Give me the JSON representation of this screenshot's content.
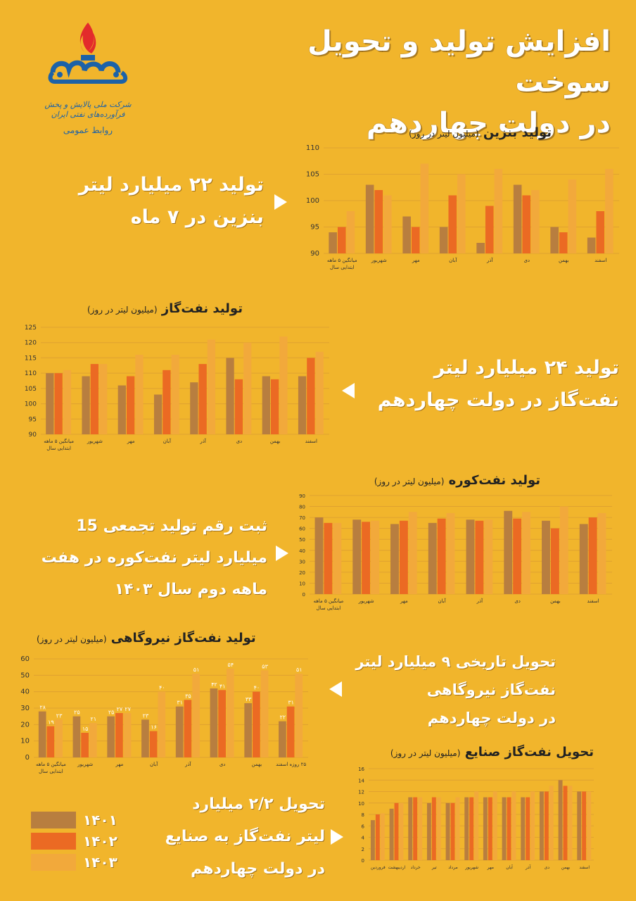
{
  "title": {
    "line1": "افزایش تولید و تحویل سوخت",
    "line2": "در دولت چهاردهم"
  },
  "logo": {
    "org_name": "شرکت ملی پالایش و پخش فرآورده‌های نفتی ایران",
    "dept": "روابط عمومی"
  },
  "colors": {
    "y1401": "#B87E3F",
    "y1402": "#EB6A23",
    "y1403": "#F2A93B",
    "background": "#F1B52C"
  },
  "legend": [
    {
      "label": "۱۴۰۱",
      "color": "#B87E3F"
    },
    {
      "label": "۱۴۰۲",
      "color": "#EB6A23"
    },
    {
      "label": "۱۴۰۳",
      "color": "#F2A93B"
    }
  ],
  "callouts": {
    "gasoline": [
      "تولید ۲۲ میلیارد لیتر",
      "بنزین در ۷ ماه"
    ],
    "diesel": [
      "تولید ۲۴ میلیارد لیتر",
      "نفت‌گاز در دولت چهاردهم"
    ],
    "kerosene": [
      "ثبت رقم تولید تجمعی 15",
      "میلیارد لیتر نفت‌کوره در هفت",
      "ماهه دوم سال ۱۴۰۳"
    ],
    "power": [
      "تحویل تاریخی ۹ میلیارد لیتر",
      "نفت‌گاز نیروگاهی",
      "در دولت چهاردهم"
    ],
    "industry": [
      "تحویل ۲/۲ میلیارد",
      "لیتر نفت‌گاز به صنایع",
      "در دولت چهاردهم"
    ]
  },
  "chart_data": [
    {
      "type": "bar",
      "title": "تولید بنزین",
      "unit": "(میلیون لیتر در روز)",
      "categories": [
        "میانگین ۵ ماهه ابتدایی سال",
        "شهریور",
        "مهر",
        "آبان",
        "آذر",
        "دی",
        "بهمن",
        "اسفند"
      ],
      "ylim": [
        90,
        110
      ],
      "yticks": [
        90,
        95,
        100,
        105,
        110
      ],
      "series": [
        {
          "name": "۱۴۰۱",
          "values": [
            94,
            103,
            97,
            95,
            92,
            103,
            95,
            93
          ]
        },
        {
          "name": "۱۴۰۲",
          "values": [
            95,
            102,
            95,
            101,
            99,
            101,
            94,
            98
          ]
        },
        {
          "name": "۱۴۰۳",
          "values": [
            98,
            101,
            107,
            105,
            106,
            102,
            104,
            106
          ]
        }
      ]
    },
    {
      "type": "bar",
      "title": "تولید نفت‌گاز",
      "unit": "(میلیون لیتر در روز)",
      "categories": [
        "میانگین ۵ ماهه ابتدایی سال",
        "شهریور",
        "مهر",
        "آبان",
        "آذر",
        "دی",
        "بهمن",
        "اسفند"
      ],
      "ylim": [
        90,
        125
      ],
      "yticks": [
        90,
        95,
        100,
        105,
        110,
        115,
        120,
        125
      ],
      "series": [
        {
          "name": "۱۴۰۱",
          "values": [
            110,
            109,
            106,
            103,
            107,
            115,
            109,
            109
          ]
        },
        {
          "name": "۱۴۰۲",
          "values": [
            110,
            113,
            109,
            111,
            113,
            108,
            108,
            115
          ]
        },
        {
          "name": "۱۴۰۳",
          "values": [
            111,
            113,
            116,
            116,
            121,
            120,
            122,
            117
          ]
        }
      ]
    },
    {
      "type": "bar",
      "title": "تولید نفت‌کوره",
      "unit": "(میلیون لیتر در روز)",
      "categories": [
        "میانگین ۵ ماهه ابتدایی سال",
        "شهریور",
        "مهر",
        "آبان",
        "آذر",
        "دی",
        "بهمن",
        "اسفند"
      ],
      "ylim": [
        0,
        90
      ],
      "yticks": [
        0,
        10,
        20,
        30,
        40,
        50,
        60,
        70,
        80,
        90
      ],
      "series": [
        {
          "name": "۱۴۰۱",
          "values": [
            70,
            68,
            64,
            65,
            68,
            76,
            67,
            64
          ]
        },
        {
          "name": "۱۴۰۲",
          "values": [
            65,
            66,
            67,
            69,
            67,
            69,
            60,
            70
          ]
        },
        {
          "name": "۱۴۰۳",
          "values": [
            65,
            67,
            75,
            74,
            68,
            75,
            80,
            74
          ]
        }
      ]
    },
    {
      "type": "bar",
      "title": "تولید نفت‌گاز نیروگاهی",
      "unit": "(میلیون لیتر در روز)",
      "categories": [
        "میانگین ۵ ماهه ابتدایی سال",
        "شهریور",
        "مهر",
        "آبان",
        "آذر",
        "دی",
        "بهمن",
        "۲۵ روزه اسفند"
      ],
      "ylim": [
        0,
        60
      ],
      "yticks": [
        0,
        10,
        20,
        30,
        40,
        50,
        60
      ],
      "data_labels": true,
      "series": [
        {
          "name": "۱۴۰۱",
          "values": [
            28,
            25,
            25,
            23,
            31,
            42,
            33,
            22
          ]
        },
        {
          "name": "۱۴۰۲",
          "values": [
            19,
            15,
            27,
            16,
            35,
            41,
            40,
            31
          ]
        },
        {
          "name": "۱۴۰۳",
          "values": [
            23,
            21,
            27,
            40,
            51,
            54,
            53,
            51
          ]
        }
      ]
    },
    {
      "type": "bar",
      "title": "تحویل نفت‌گاز صنایع",
      "unit": "(میلیون لیتر در روز)",
      "categories": [
        "فروردین",
        "اردیبهشت",
        "خرداد",
        "تیر",
        "مرداد",
        "شهریور",
        "مهر",
        "آبان",
        "آذر",
        "دی",
        "بهمن",
        "اسفند"
      ],
      "ylim": [
        0,
        16
      ],
      "yticks": [
        0,
        2,
        4,
        6,
        8,
        10,
        12,
        14,
        16
      ],
      "series": [
        {
          "name": "۱۴۰۲",
          "values": [
            7,
            9,
            11,
            10,
            10,
            11,
            11,
            11,
            11,
            12,
            14,
            12
          ]
        },
        {
          "name": "۱۴۰۳",
          "values": [
            8,
            10,
            11,
            11,
            10,
            11,
            11,
            11,
            11,
            12,
            13,
            12
          ]
        },
        {
          "name": "",
          "values": [
            8.2,
            10,
            11,
            11,
            11,
            12,
            12,
            12,
            12,
            13,
            13,
            12
          ]
        }
      ]
    }
  ]
}
